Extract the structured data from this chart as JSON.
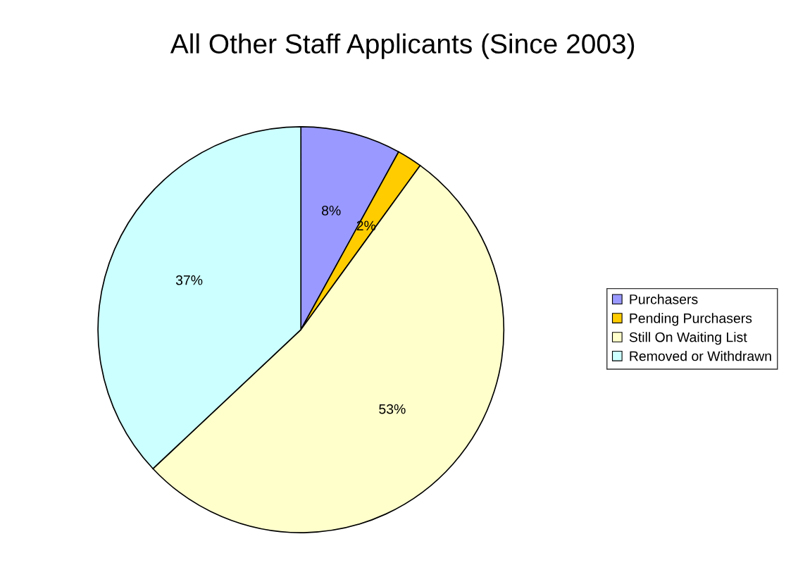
{
  "chart_data": {
    "type": "pie",
    "title": "All Other Staff Applicants (Since 2003)",
    "categories": [
      "Purchasers",
      "Pending Purchasers",
      "Still On Waiting List",
      "Removed or Withdrawn"
    ],
    "values": [
      8,
      2,
      53,
      37
    ],
    "colors": [
      "#9999ff",
      "#ffcc00",
      "#ffffcc",
      "#ccffff"
    ],
    "value_labels": [
      "8%",
      "2%",
      "53%",
      "37%"
    ],
    "legend": "right"
  }
}
